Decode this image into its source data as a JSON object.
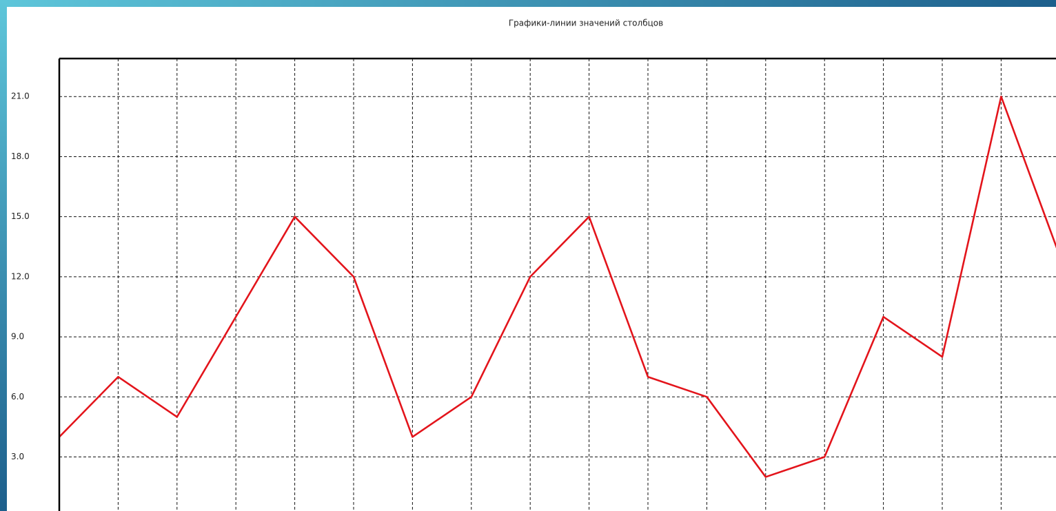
{
  "chart_data": {
    "type": "line",
    "title": "Графики-линии значений столбцов",
    "categories": [
      null,
      null,
      null,
      null,
      null,
      null,
      null,
      null,
      null,
      null,
      null,
      null,
      null,
      null,
      null,
      null,
      null,
      null
    ],
    "series": [
      {
        "color": "#e3141b",
        "values": [
          4,
          7,
          5,
          10,
          15,
          12,
          4,
          6,
          12,
          15,
          7,
          6,
          2,
          3,
          10,
          8,
          21,
          13
        ]
      }
    ],
    "ylim": [
      0.3,
      22.9
    ],
    "yticks": [
      {
        "value": 3,
        "label": "3.0"
      },
      {
        "value": 6,
        "label": "6.0"
      },
      {
        "value": 9,
        "label": "9.0"
      },
      {
        "value": 12,
        "label": "12.0"
      },
      {
        "value": 15,
        "label": "15.0"
      },
      {
        "value": 18,
        "label": "18.0"
      },
      {
        "value": 21,
        "label": "21.0"
      }
    ],
    "grid": true
  }
}
